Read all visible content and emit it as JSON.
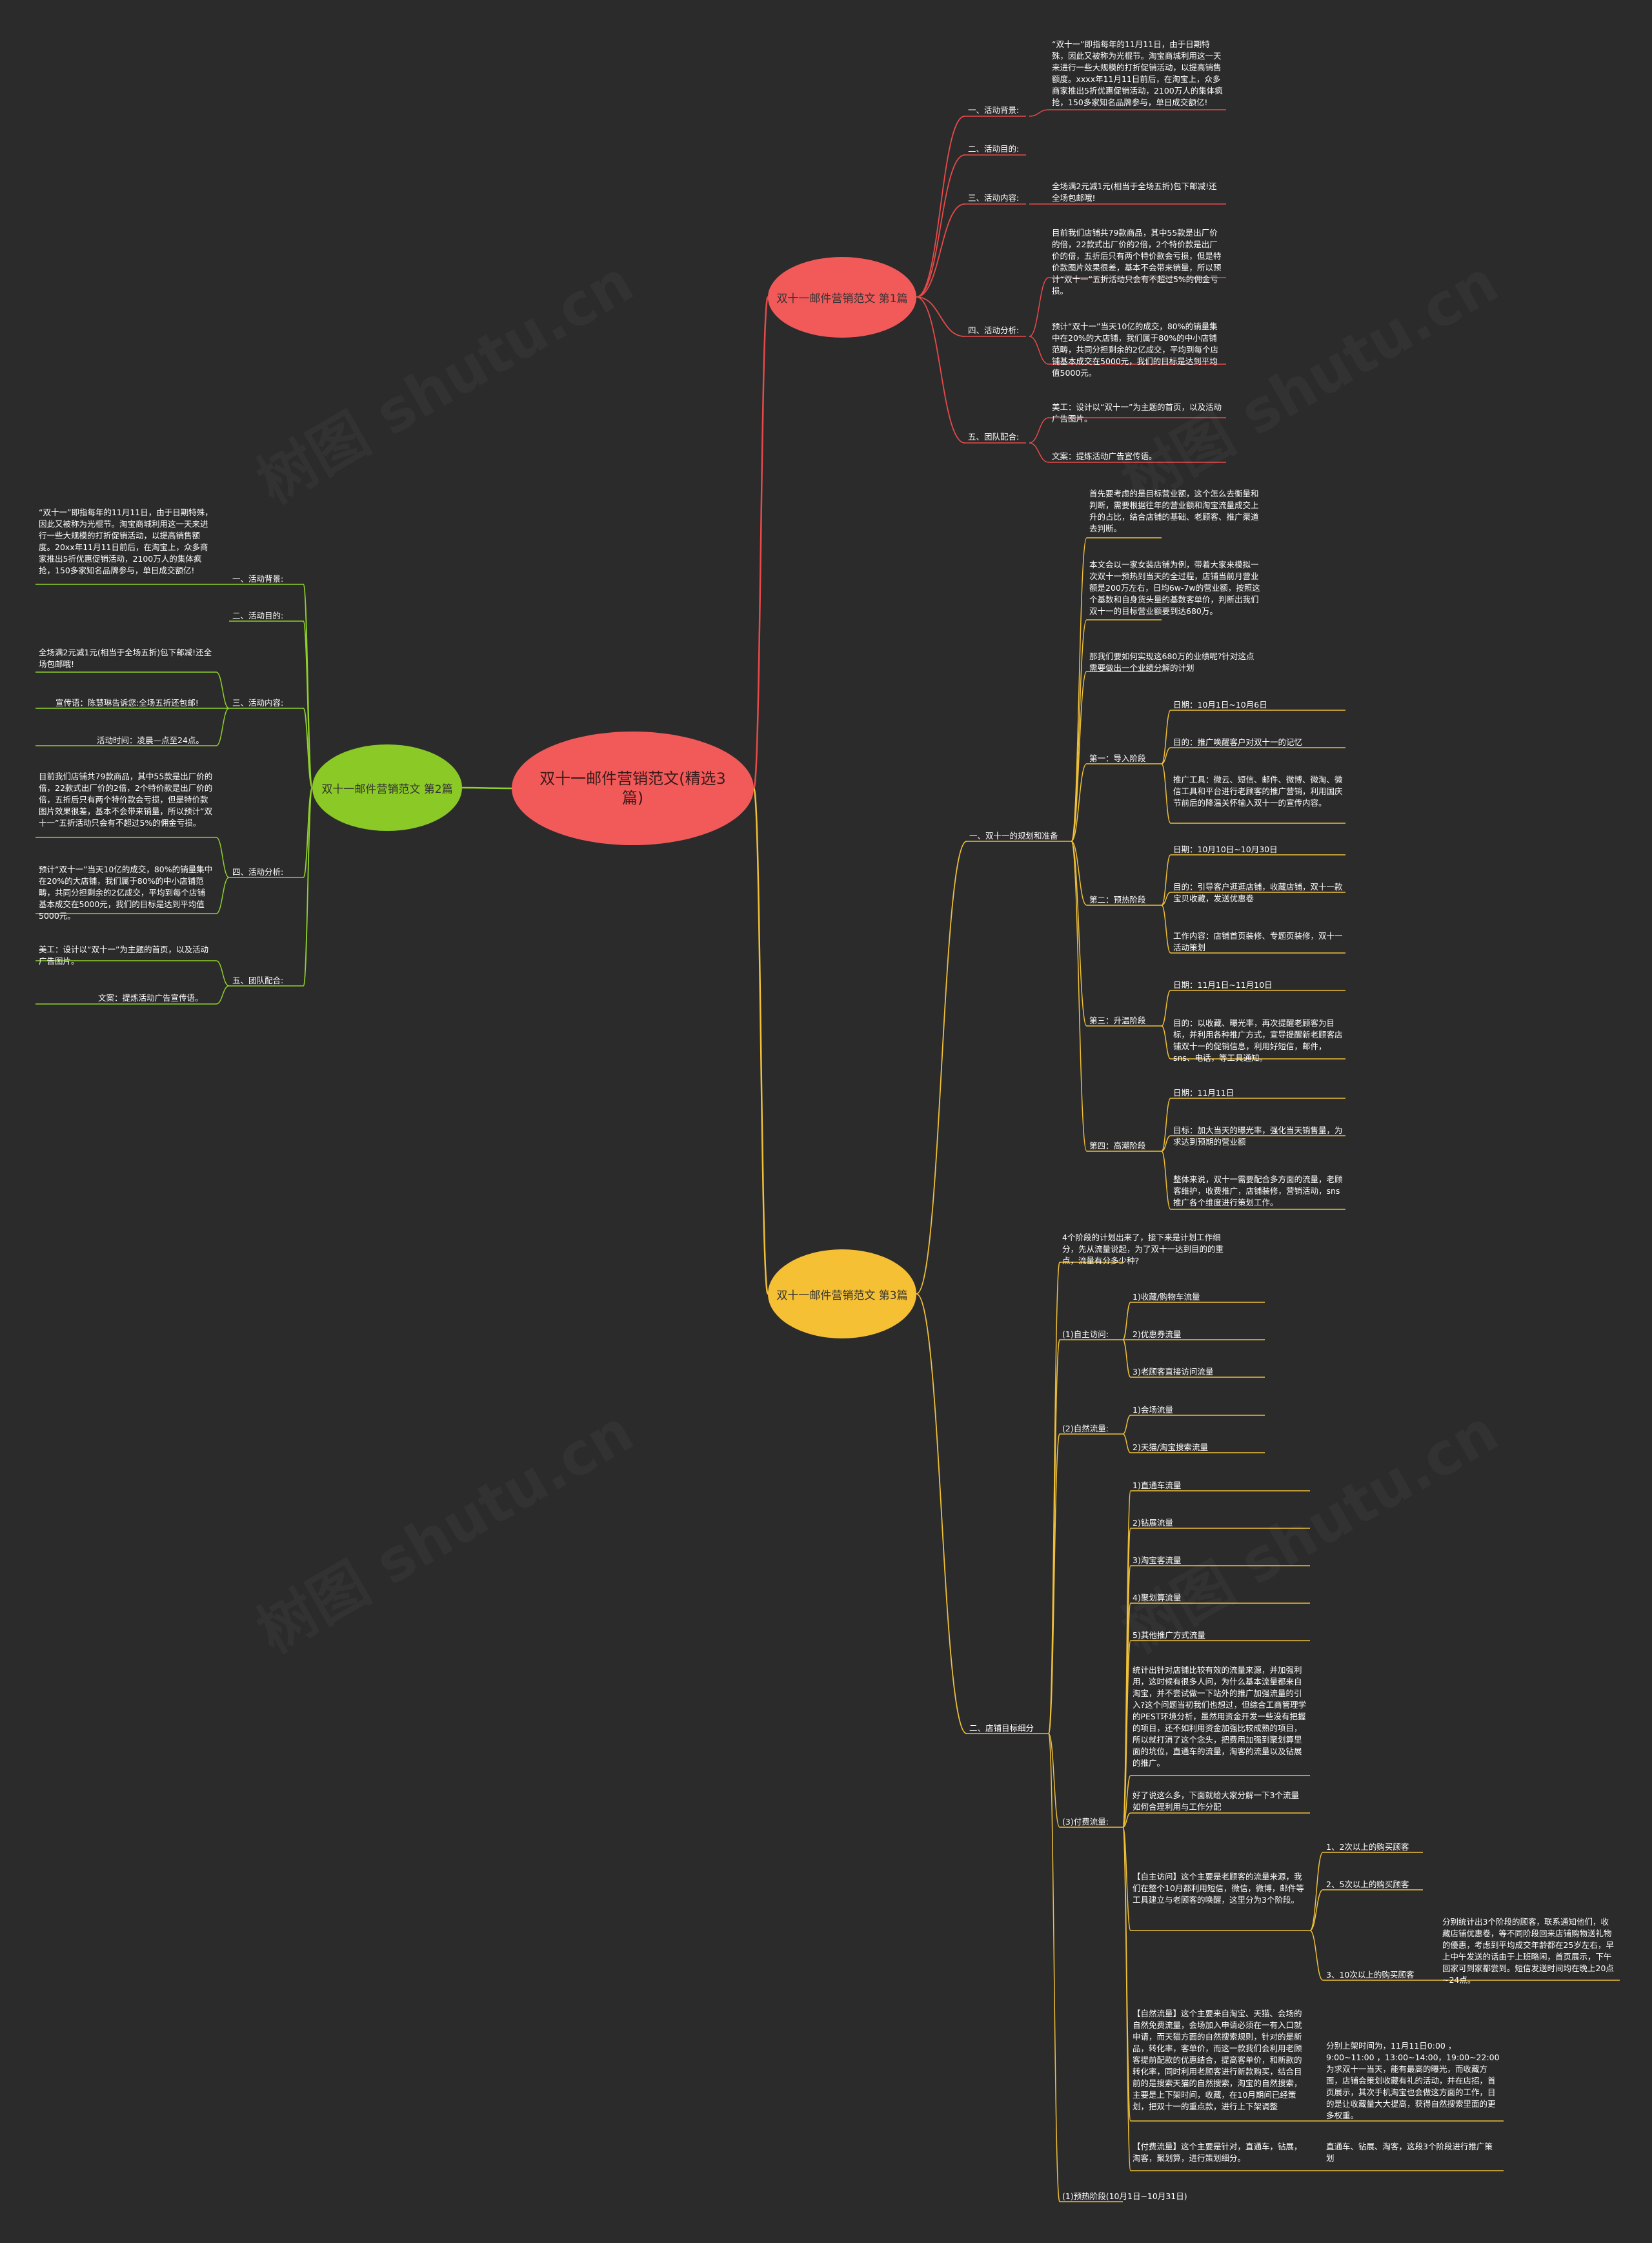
{
  "colors": {
    "background": "#2b2b2b",
    "root": "#f25a5a",
    "branch1": "#f25a5a",
    "branch2": "#8ac926",
    "branch3": "#f5c033",
    "line1": "#e84a4a",
    "line2": "#8fd12a",
    "line3": "#f0c03a"
  },
  "root": {
    "label": "双十一邮件营销范文(精选3篇)"
  },
  "b1": {
    "label": "双十一邮件营销范文 第1篇",
    "s1": {
      "label": "一、活动背景:",
      "text": "“双十一”即指每年的11月11日，由于日期特殊，因此又被称为光棍节。淘宝商城利用这一天来进行一些大规模的打折促销活动，以提高销售额度。xxxx年11月11日前后，在淘宝上，众多商家推出5折优惠促销活动，2100万人的集体疯抢，150多家知名品牌参与，单日成交额亿!"
    },
    "s2": {
      "label": "二、活动目的:"
    },
    "s3": {
      "label": "三、活动内容:",
      "text": "全场满2元减1元(相当于全场五折)包下邮减!还全场包邮哦!"
    },
    "s4": {
      "label": "四、活动分析:",
      "t1": "目前我们店铺共79款商品，其中55款是出厂价的倍，22款式出厂价的2倍，2个特价款是出厂价的倍，五折后只有两个特价款会亏损，但是特价款图片效果很差，基本不会带来销量，所以预计“双十一”五折活动只会有不超过5%的佣金亏损。",
      "t2": "预计“双十一”当天10亿的成交，80%的销量集中在20%的大店铺，我们属于80%的中小店铺范畴，共同分担剩余的2亿成交，平均到每个店铺基本成交在5000元，我们的目标是达到平均值5000元。"
    },
    "s5": {
      "label": "五、团队配合:",
      "t1": "美工：设计以“双十一”为主题的首页，以及活动广告图片。",
      "t2": "文案：提炼活动广告宣传语。"
    }
  },
  "b2": {
    "label": "双十一邮件营销范文 第2篇",
    "s1": {
      "label": "一、活动背景:",
      "text": "“双十一”即指每年的11月11日，由于日期特殊，因此又被称为光棍节。淘宝商城利用这一天来进行一些大规模的打折促销活动，以提高销售额度。20xx年11月11日前后，在淘宝上，众多商家推出5折优惠促销活动，2100万人的集体疯抢，150多家知名品牌参与，单日成交额亿!"
    },
    "s2": {
      "label": "二、活动目的:"
    },
    "s3": {
      "label": "三、活动内容:",
      "t1": "全场满2元减1元(相当于全场五折)包下邮减!还全场包邮哦!",
      "t2": "宣传语：陈慧琳告诉您:全场五折还包邮!",
      "t3": "活动时间：凌晨—点至24点。"
    },
    "s4": {
      "label": "四、活动分析:",
      "t1": "目前我们店铺共79款商品，其中55款是出厂价的倍，22款式出厂价的2倍，2个特价款是出厂价的倍，五折后只有两个特价款会亏损，但是特价款图片效果很差，基本不会带来销量，所以预计“双十一”五折活动只会有不超过5%的佣金亏损。",
      "t2": "预计“双十一”当天10亿的成交，80%的销量集中在20%的大店铺，我们属于80%的中小店铺范畴，共同分担剩余的2亿成交，平均到每个店铺基本成交在5000元，我们的目标是达到平均值5000元。"
    },
    "s5": {
      "label": "五、团队配合:",
      "t1": "美工：设计以“双十一”为主题的首页，以及活动广告图片。",
      "t2": "文案：提炼活动广告宣传语。"
    }
  },
  "b3": {
    "label": "双十一邮件营销范文 第3篇",
    "p1": {
      "label": "一、双十一的规划和准备",
      "t1": "首先要考虑的是目标营业额，这个怎么去衡量和判断，需要根据往年的营业额和淘宝流量成交上升的占比，结合店铺的基础、老顾客、推广渠道去判断。",
      "t2": "本文会以一家女装店铺为例，带着大家来模拟一次双十一预热到当天的全过程，店铺当前月营业额是200万左右，日均6w-7w的营业额，按照这个基数和自身货头量的基数客单价，判断出我们双十一的目标营业额要到达680万。",
      "t3": "那我们要如何实现这680万的业绩呢?针对这点需要做出一个业绩分解的计划",
      "st1": {
        "label": "第一：导入阶段",
        "d": "日期：10月1日~10月6日",
        "g": "目的：推广唤醒客户对双十一的记忆",
        "w": "推广工具：微云、短信、邮件、微博、微淘、微信工具和平台进行老顾客的推广营销，利用国庆节前后的降温关怀输入双十一的宣传内容。"
      },
      "st2": {
        "label": "第二：预热阶段",
        "d": "日期：10月10日~10月30日",
        "g": "目的：引导客户逛逛店铺，收藏店铺，双十一款宝贝收藏，发送优惠卷",
        "w": "工作内容：店铺首页装修、专题页装修，双十一活动策划"
      },
      "st3": {
        "label": "第三：升温阶段",
        "d": "日期：11月1日~11月10日",
        "g": "目的：以收藏、曝光率，再次提醒老顾客为目标，并利用各种推广方式，宣导提醒新老顾客店铺双十一的促销信息，利用好短信，邮件，sns、电话，等工具通知。"
      },
      "st4": {
        "label": "第四：高潮阶段",
        "d": "日期：11月11日",
        "g": "目标：加大当天的曝光率，强化当天销售量，为求达到预期的营业额",
        "w": "整体来说，双十一需要配合多方面的流量，老顾客维护，收费推广，店铺装修，营销活动，sns推广各个维度进行策划工作。"
      }
    },
    "p2": {
      "label": "二、店铺目标细分",
      "intro": "4个阶段的计划出来了，接下来是计划工作细分，先从流量说起，为了双十一达到目的的重点，流量有分多少种?",
      "g1": {
        "label": "(1)自主访问:",
        "i1": "1)收藏/购物车流量",
        "i2": "2)优惠券流量",
        "i3": "3)老顾客直接访问流量"
      },
      "g2": {
        "label": "(2)自然流量:",
        "i1": "1)会场流量",
        "i2": "2)天猫/淘宝搜索流量"
      },
      "g3": {
        "label": "(3)付费流量:",
        "i1": "1)直通车流量",
        "i2": "2)钻展流量",
        "i3": "3)淘宝客流量",
        "i4": "4)聚划算流量",
        "i5": "5)其他推广方式流量",
        "a": "统计出针对店铺比较有效的流量来源，并加强利用，这时候有很多人问，为什么基本流量都来自淘宝，并不尝试做一下站外的推广加强流量的引入?这个问题当初我们也想过，但综合工商管理学的PEST环境分析，虽然用资金开发一些没有把握的项目，还不如利用资金加强比较成熟的项目，所以就打消了这个念头，把费用加强到聚划算里面的坑位，直通车的流量，淘客的流量以及钻展的推广。",
        "b": "好了说这么多，下面就给大家分解一下3个流量如何合理利用与工作分配",
        "c": {
          "text": "【自主访问】这个主要是老顾客的流量来源，我们在整个10月都利用短信，微信，微博，邮件等工具建立与老顾客的唤醒，这里分为3个阶段。",
          "k1": "1、2次以上的购买顾客",
          "k2": "2、5次以上的购买顾客",
          "k3": "3、10次以上的购买顾客",
          "k3t": "分别统计出3个阶段的顾客，联系通知他们，收藏店铺优惠卷，等不同阶段回来店铺购物送礼物的優惠，考虑到平均成交年龄都在25岁左右，早上中午发送的话由于上班略闲，首页展示，下午回家可到家都尝到。短信发送时间均在晚上20点~24点。"
        },
        "d": {
          "text": "【自然流量】这个主要来自淘宝、天猫、会场的自然免费流量，会场加入申请必须在一有入口就申请，而天猫方面的自然搜索规则，针对的是新品，转化率，客单价，而这一款我们会利用老顾客提前配款的优惠结合，提高客单价，和新款的转化率，同时利用老顾客进行新款购买，结合目前的是搜索天猫的自然搜索，淘宝的自然搜索，主要是上下架时间，收藏，在10月期间已经策划，把双十一的重点款，进行上下架调整",
          "k": "分别上架时间为，11月11日0:00 ，9:00~11:00 ，13:00~14:00，19:00~22:00 为求双十一当天，能有最高的曝光，而收藏方面，店铺会策划收藏有礼的活动，并在店招，首页展示，其次手机淘宝也会做这方面的工作，目的是让收藏量大大提高，获得自然搜索里面的更多权重。"
        },
        "e": {
          "text": "【付费流量】这个主要是针对，直通车，钻展，淘客，聚划算，进行策划细分。",
          "k": "直通车、钻展、淘客，这段3个阶段进行推广策划"
        }
      },
      "g4": {
        "label": "(1)预热阶段(10月1日~10月31日)"
      }
    }
  },
  "watermark": "树图 shutu.cn"
}
